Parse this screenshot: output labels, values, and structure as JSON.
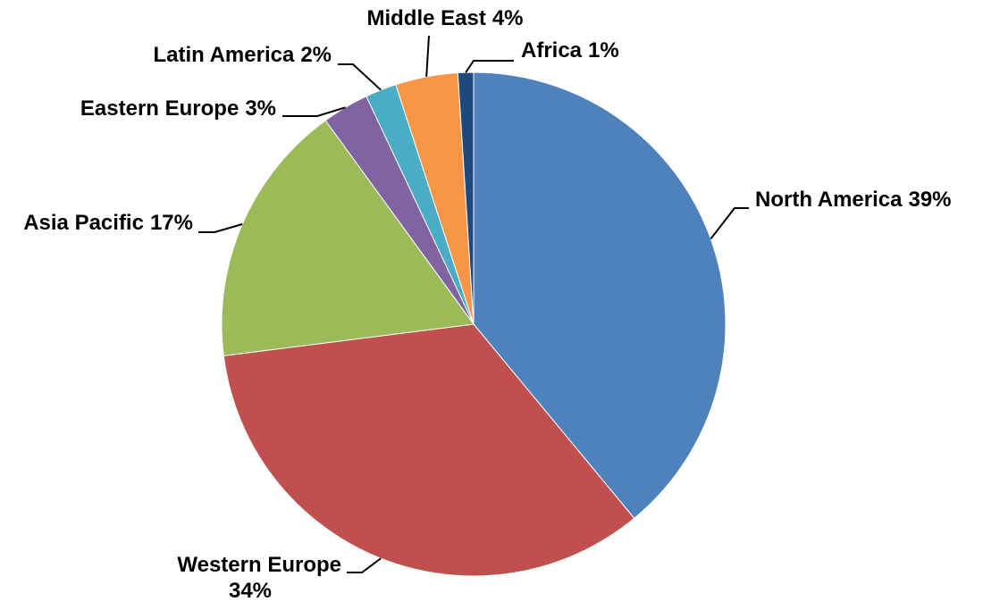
{
  "chart_data": {
    "type": "pie",
    "categories": [
      "North America",
      "Western Europe",
      "Asia Pacific",
      "Eastern Europe",
      "Latin America",
      "Middle East",
      "Africa"
    ],
    "values": [
      39,
      34,
      17,
      3,
      2,
      4,
      1
    ],
    "value_labels": [
      "39%",
      "34%",
      "17%",
      "3%",
      "2%",
      "4%",
      "1%"
    ],
    "colors": [
      "#4f81bd",
      "#c0504d",
      "#9bbb59",
      "#8064a2",
      "#4bacc6",
      "#f79646",
      "#1f497d"
    ]
  }
}
